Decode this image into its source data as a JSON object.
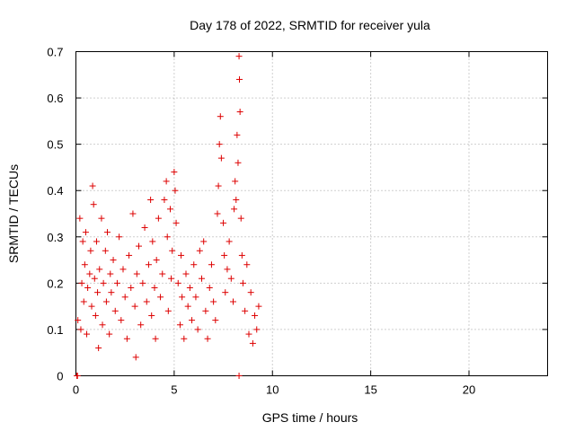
{
  "chart_data": {
    "type": "scatter",
    "title": "Day 178 of 2022, SRMTID for receiver yula",
    "xlabel": "GPS time / hours",
    "ylabel": "SRMTID / TECUs",
    "xlim": [
      0,
      24
    ],
    "ylim": [
      0,
      0.7
    ],
    "xticks": [
      0,
      5,
      10,
      15,
      20
    ],
    "yticks": [
      0,
      0.1,
      0.2,
      0.3,
      0.4,
      0.5,
      0.6,
      0.7
    ],
    "xtick_labels": [
      "0",
      "5",
      "10",
      "15",
      "20"
    ],
    "ytick_labels": [
      "0",
      "0.1",
      "0.2",
      "0.3",
      "0.4",
      "0.5",
      "0.6",
      "0.7"
    ],
    "grid": true,
    "marker": "+",
    "color": "#dd0000",
    "series": [
      {
        "name": "SRMTID",
        "points": [
          [
            0.05,
            0.0
          ],
          [
            0.08,
            0.0
          ],
          [
            8.3,
            0.0
          ],
          [
            0.1,
            0.12
          ],
          [
            0.2,
            0.34
          ],
          [
            0.25,
            0.1
          ],
          [
            0.3,
            0.2
          ],
          [
            0.35,
            0.29
          ],
          [
            0.4,
            0.16
          ],
          [
            0.45,
            0.24
          ],
          [
            0.5,
            0.31
          ],
          [
            0.55,
            0.09
          ],
          [
            0.6,
            0.19
          ],
          [
            0.7,
            0.22
          ],
          [
            0.75,
            0.27
          ],
          [
            0.8,
            0.15
          ],
          [
            0.85,
            0.41
          ],
          [
            0.9,
            0.37
          ],
          [
            0.95,
            0.21
          ],
          [
            1.0,
            0.13
          ],
          [
            1.05,
            0.29
          ],
          [
            1.1,
            0.18
          ],
          [
            1.15,
            0.06
          ],
          [
            1.2,
            0.23
          ],
          [
            1.3,
            0.34
          ],
          [
            1.35,
            0.11
          ],
          [
            1.4,
            0.2
          ],
          [
            1.5,
            0.27
          ],
          [
            1.55,
            0.16
          ],
          [
            1.6,
            0.31
          ],
          [
            1.7,
            0.09
          ],
          [
            1.75,
            0.22
          ],
          [
            1.8,
            0.18
          ],
          [
            1.9,
            0.25
          ],
          [
            2.0,
            0.14
          ],
          [
            2.1,
            0.2
          ],
          [
            2.2,
            0.3
          ],
          [
            2.3,
            0.12
          ],
          [
            2.4,
            0.23
          ],
          [
            2.5,
            0.17
          ],
          [
            2.6,
            0.08
          ],
          [
            2.7,
            0.26
          ],
          [
            2.8,
            0.19
          ],
          [
            2.9,
            0.35
          ],
          [
            3.0,
            0.15
          ],
          [
            3.05,
            0.04
          ],
          [
            3.1,
            0.22
          ],
          [
            3.2,
            0.28
          ],
          [
            3.3,
            0.11
          ],
          [
            3.4,
            0.2
          ],
          [
            3.5,
            0.32
          ],
          [
            3.6,
            0.16
          ],
          [
            3.7,
            0.24
          ],
          [
            3.8,
            0.38
          ],
          [
            3.85,
            0.13
          ],
          [
            3.9,
            0.29
          ],
          [
            4.0,
            0.19
          ],
          [
            4.05,
            0.08
          ],
          [
            4.1,
            0.25
          ],
          [
            4.2,
            0.34
          ],
          [
            4.3,
            0.17
          ],
          [
            4.4,
            0.22
          ],
          [
            4.5,
            0.38
          ],
          [
            4.6,
            0.42
          ],
          [
            4.65,
            0.3
          ],
          [
            4.7,
            0.14
          ],
          [
            4.8,
            0.36
          ],
          [
            4.85,
            0.21
          ],
          [
            4.9,
            0.27
          ],
          [
            5.0,
            0.44
          ],
          [
            5.05,
            0.4
          ],
          [
            5.1,
            0.33
          ],
          [
            5.2,
            0.2
          ],
          [
            5.3,
            0.11
          ],
          [
            5.35,
            0.26
          ],
          [
            5.4,
            0.17
          ],
          [
            5.5,
            0.08
          ],
          [
            5.6,
            0.22
          ],
          [
            5.7,
            0.15
          ],
          [
            5.8,
            0.19
          ],
          [
            5.9,
            0.12
          ],
          [
            6.0,
            0.24
          ],
          [
            6.1,
            0.17
          ],
          [
            6.2,
            0.1
          ],
          [
            6.3,
            0.27
          ],
          [
            6.4,
            0.21
          ],
          [
            6.5,
            0.29
          ],
          [
            6.6,
            0.14
          ],
          [
            6.7,
            0.08
          ],
          [
            6.8,
            0.19
          ],
          [
            6.9,
            0.24
          ],
          [
            7.0,
            0.16
          ],
          [
            7.1,
            0.12
          ],
          [
            7.2,
            0.35
          ],
          [
            7.25,
            0.41
          ],
          [
            7.3,
            0.5
          ],
          [
            7.35,
            0.56
          ],
          [
            7.4,
            0.47
          ],
          [
            7.5,
            0.33
          ],
          [
            7.55,
            0.26
          ],
          [
            7.6,
            0.18
          ],
          [
            7.7,
            0.23
          ],
          [
            7.8,
            0.29
          ],
          [
            7.9,
            0.21
          ],
          [
            8.0,
            0.16
          ],
          [
            8.05,
            0.36
          ],
          [
            8.1,
            0.42
          ],
          [
            8.15,
            0.38
          ],
          [
            8.2,
            0.52
          ],
          [
            8.25,
            0.46
          ],
          [
            8.3,
            0.69
          ],
          [
            8.32,
            0.64
          ],
          [
            8.35,
            0.57
          ],
          [
            8.4,
            0.34
          ],
          [
            8.45,
            0.26
          ],
          [
            8.5,
            0.2
          ],
          [
            8.6,
            0.14
          ],
          [
            8.7,
            0.24
          ],
          [
            8.8,
            0.09
          ],
          [
            8.9,
            0.18
          ],
          [
            9.0,
            0.07
          ],
          [
            9.1,
            0.13
          ],
          [
            9.2,
            0.1
          ],
          [
            9.3,
            0.15
          ]
        ]
      }
    ]
  }
}
